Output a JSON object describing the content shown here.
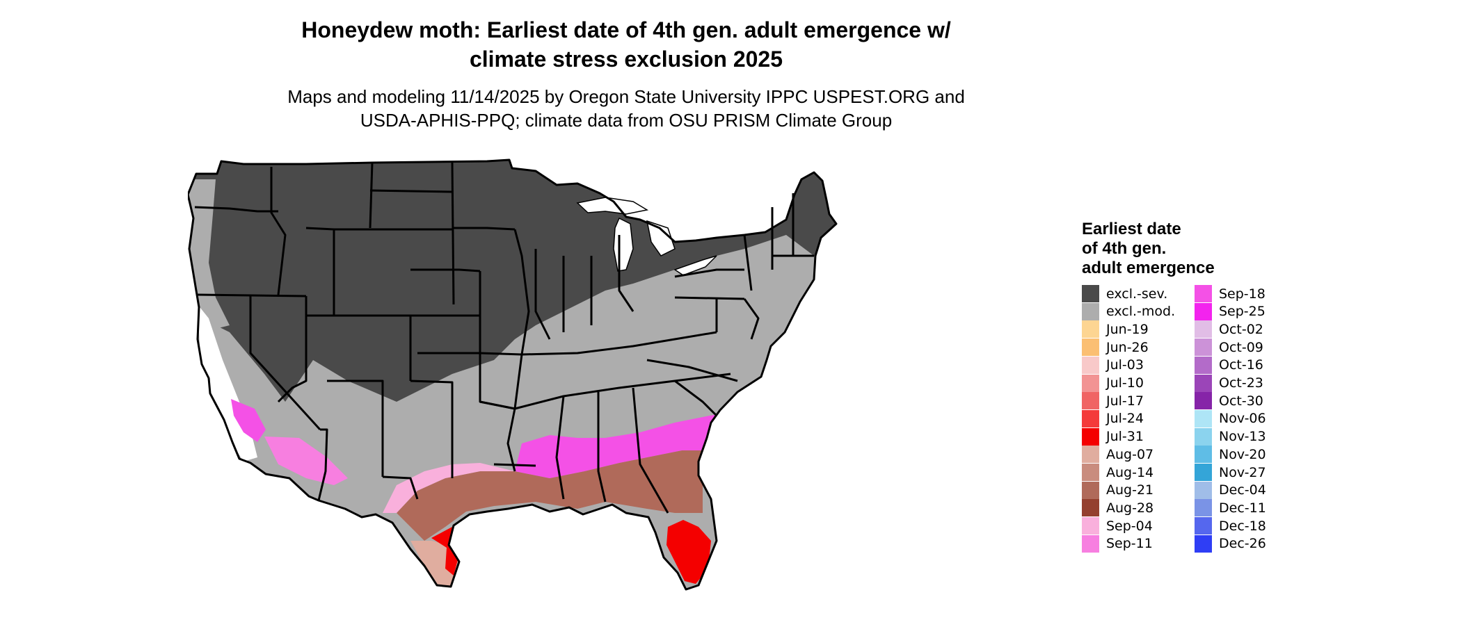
{
  "title_line1": "Honeydew moth: Earliest date of 4th gen. adult emergence w/",
  "title_line2": "climate stress exclusion 2025",
  "subtitle_line1": "Maps and modeling 11/14/2025 by Oregon State University IPPC USPEST.ORG and",
  "subtitle_line2": "USDA-APHIS-PPQ; climate data from OSU PRISM Climate Group",
  "legend": {
    "title_line1": "Earliest date",
    "title_line2": "of 4th gen.",
    "title_line3": "adult emergence",
    "entries": [
      {
        "label": "excl.-sev.",
        "color": "#4a4a4a"
      },
      {
        "label": "excl.-mod.",
        "color": "#adadad"
      },
      {
        "label": "Jun-19",
        "color": "#fdd592"
      },
      {
        "label": "Jun-26",
        "color": "#fbbf73"
      },
      {
        "label": "Jul-03",
        "color": "#f8c9c9"
      },
      {
        "label": "Jul-10",
        "color": "#f29393"
      },
      {
        "label": "Jul-17",
        "color": "#f06464"
      },
      {
        "label": "Jul-24",
        "color": "#f43b3b"
      },
      {
        "label": "Jul-31",
        "color": "#f40000"
      },
      {
        "label": "Aug-07",
        "color": "#e0ad9f"
      },
      {
        "label": "Aug-14",
        "color": "#c98c7e"
      },
      {
        "label": "Aug-21",
        "color": "#b06a5a"
      },
      {
        "label": "Aug-28",
        "color": "#94402f"
      },
      {
        "label": "Sep-04",
        "color": "#f9b0dc"
      },
      {
        "label": "Sep-11",
        "color": "#f77fe0"
      },
      {
        "label": "Sep-18",
        "color": "#f451e6"
      },
      {
        "label": "Sep-25",
        "color": "#f323ee"
      },
      {
        "label": "Oct-02",
        "color": "#e1bde6"
      },
      {
        "label": "Oct-09",
        "color": "#cc92d8"
      },
      {
        "label": "Oct-16",
        "color": "#b36bc9"
      },
      {
        "label": "Oct-23",
        "color": "#9b45b8"
      },
      {
        "label": "Oct-30",
        "color": "#8624a8"
      },
      {
        "label": "Nov-06",
        "color": "#aee5f6"
      },
      {
        "label": "Nov-13",
        "color": "#8bd3ee"
      },
      {
        "label": "Nov-20",
        "color": "#5fbde6"
      },
      {
        "label": "Nov-27",
        "color": "#34a5d8"
      },
      {
        "label": "Dec-04",
        "color": "#a0bde8"
      },
      {
        "label": "Dec-11",
        "color": "#7a93e6"
      },
      {
        "label": "Dec-18",
        "color": "#5567ee"
      },
      {
        "label": "Dec-26",
        "color": "#2f3ef5"
      }
    ]
  },
  "map_colors": {
    "land_default": "#4a4a4a",
    "moderate": "#adadad",
    "unmodeled": "#ffffff",
    "border": "#000000"
  }
}
